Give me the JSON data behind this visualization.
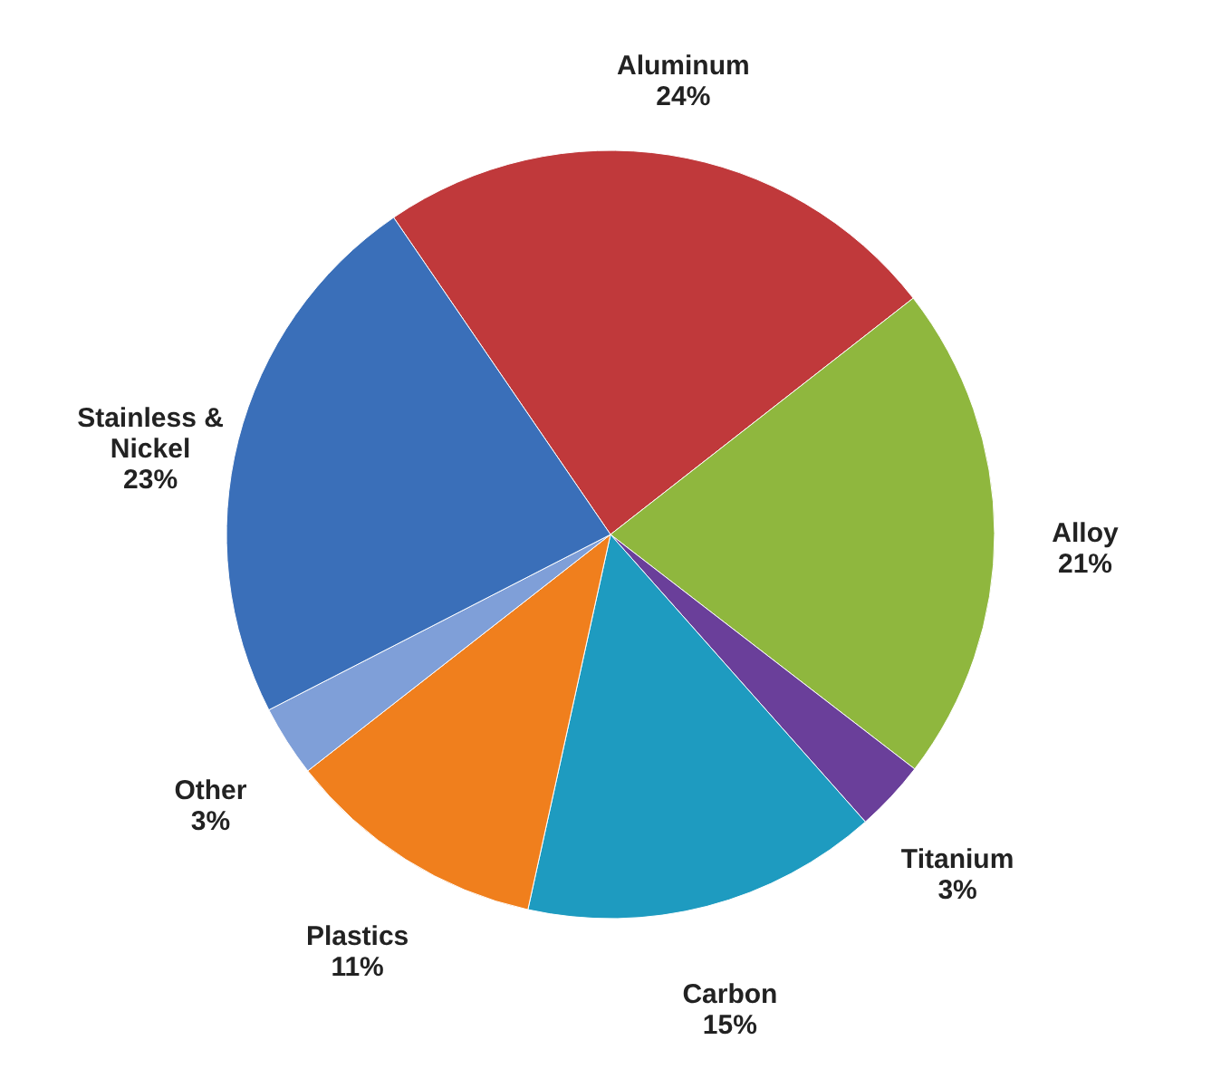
{
  "chart_data": {
    "type": "pie",
    "categories": [
      "Aluminum",
      "Alloy",
      "Titanium",
      "Carbon",
      "Plastics",
      "Other",
      "Stainless & Nickel"
    ],
    "values": [
      24,
      21,
      3,
      15,
      11,
      3,
      23
    ],
    "value_labels": [
      "24%",
      "21%",
      "3%",
      "15%",
      "11%",
      "3%",
      "23%"
    ],
    "colors": [
      "#c0393b",
      "#8fb73e",
      "#6a3f9a",
      "#1e9bc0",
      "#f07f1d",
      "#7f9fd8",
      "#3a6fb9"
    ]
  }
}
